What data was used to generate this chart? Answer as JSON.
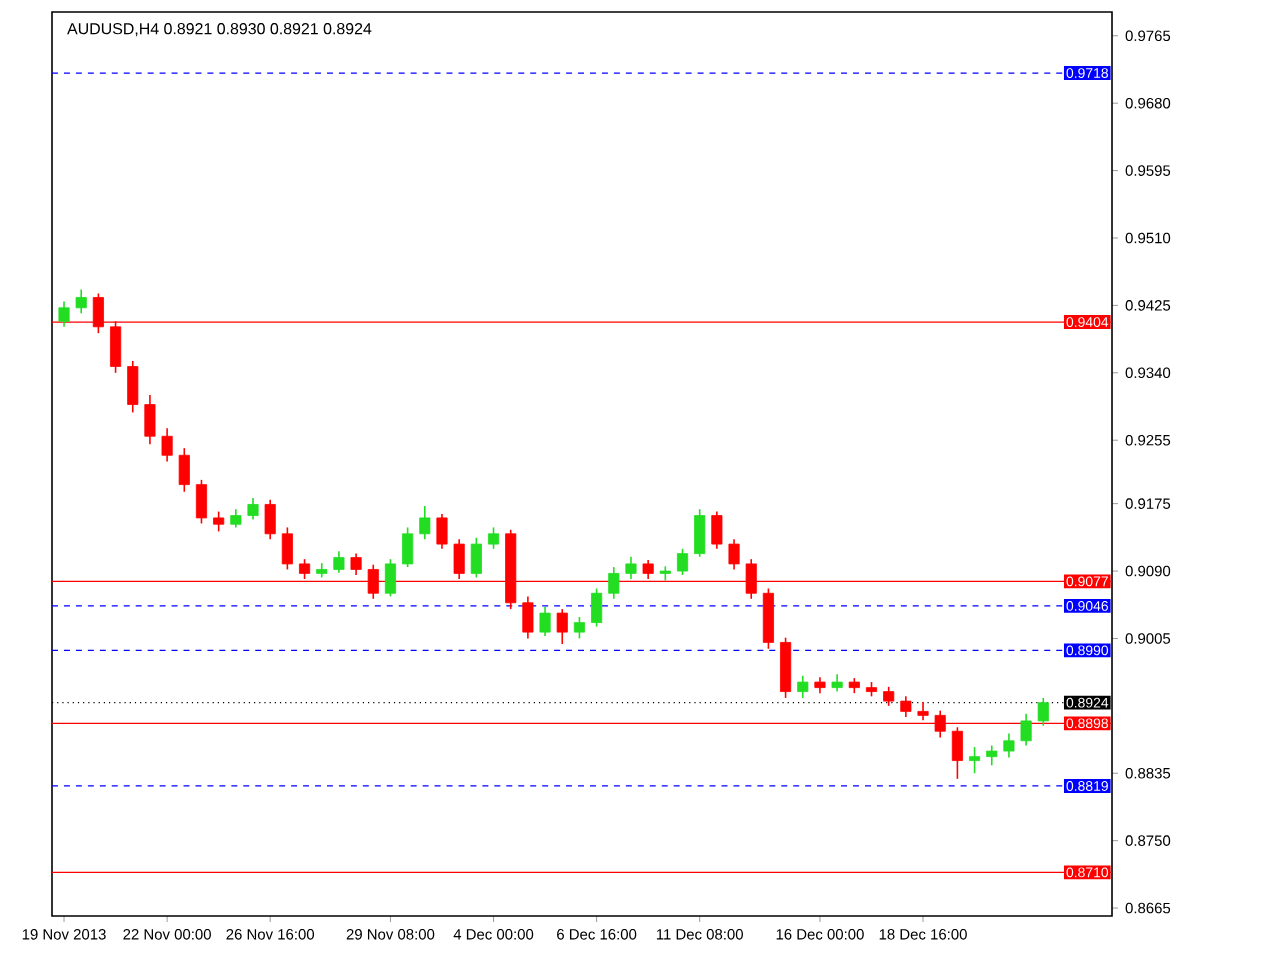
{
  "chart_data": {
    "type": "candlestick",
    "title": "AUDUSD,H4  0.8921 0.8930 0.8921 0.8924",
    "categories": [
      "19 Nov 2013",
      null,
      null,
      null,
      null,
      null,
      "22 Nov 00:00",
      null,
      null,
      null,
      null,
      null,
      "26 Nov 16:00",
      null,
      null,
      null,
      null,
      null,
      null,
      "29 Nov 08:00",
      null,
      null,
      null,
      null,
      null,
      "4 Dec 00:00",
      null,
      null,
      null,
      null,
      null,
      "6 Dec 16:00",
      null,
      null,
      null,
      null,
      null,
      "11 Dec 08:00",
      null,
      null,
      null,
      null,
      null,
      null,
      "16 Dec 00:00",
      null,
      null,
      null,
      null,
      null,
      "18 Dec 16:00",
      null,
      null,
      null,
      null,
      null,
      null,
      null
    ],
    "ohlc": [
      [
        0.9405,
        0.943,
        0.9398,
        0.9422
      ],
      [
        0.9422,
        0.9445,
        0.9415,
        0.9435
      ],
      [
        0.9435,
        0.944,
        0.939,
        0.9398
      ],
      [
        0.9398,
        0.9405,
        0.934,
        0.9348
      ],
      [
        0.9348,
        0.9355,
        0.929,
        0.93
      ],
      [
        0.93,
        0.9312,
        0.925,
        0.926
      ],
      [
        0.926,
        0.927,
        0.9228,
        0.9236
      ],
      [
        0.9236,
        0.9245,
        0.919,
        0.9199
      ],
      [
        0.9199,
        0.9205,
        0.915,
        0.9157
      ],
      [
        0.9157,
        0.9165,
        0.914,
        0.9149
      ],
      [
        0.9149,
        0.9168,
        0.9145,
        0.916
      ],
      [
        0.916,
        0.9182,
        0.9155,
        0.9174
      ],
      [
        0.9174,
        0.918,
        0.913,
        0.9137
      ],
      [
        0.9137,
        0.9145,
        0.9092,
        0.9099
      ],
      [
        0.9099,
        0.9105,
        0.908,
        0.9087
      ],
      [
        0.9087,
        0.91,
        0.9082,
        0.9092
      ],
      [
        0.9092,
        0.9115,
        0.9088,
        0.9107
      ],
      [
        0.9107,
        0.9112,
        0.9085,
        0.9092
      ],
      [
        0.9092,
        0.9098,
        0.9055,
        0.9062
      ],
      [
        0.9062,
        0.9105,
        0.9058,
        0.9099
      ],
      [
        0.9099,
        0.9145,
        0.9095,
        0.9137
      ],
      [
        0.9137,
        0.9172,
        0.913,
        0.9157
      ],
      [
        0.9157,
        0.9162,
        0.9118,
        0.9124
      ],
      [
        0.9124,
        0.913,
        0.908,
        0.9087
      ],
      [
        0.9087,
        0.9132,
        0.9082,
        0.9124
      ],
      [
        0.9124,
        0.9145,
        0.9118,
        0.9137
      ],
      [
        0.9137,
        0.9142,
        0.9042,
        0.905
      ],
      [
        0.905,
        0.9058,
        0.9005,
        0.9013
      ],
      [
        0.9013,
        0.9045,
        0.9008,
        0.9037
      ],
      [
        0.9037,
        0.9042,
        0.8998,
        0.9013
      ],
      [
        0.9013,
        0.9032,
        0.9005,
        0.9025
      ],
      [
        0.9025,
        0.9068,
        0.902,
        0.9062
      ],
      [
        0.9062,
        0.9095,
        0.9055,
        0.9087
      ],
      [
        0.9087,
        0.9108,
        0.908,
        0.9099
      ],
      [
        0.9099,
        0.9104,
        0.908,
        0.9087
      ],
      [
        0.9087,
        0.9096,
        0.9078,
        0.909
      ],
      [
        0.909,
        0.9118,
        0.9085,
        0.9112
      ],
      [
        0.9112,
        0.9168,
        0.9108,
        0.916
      ],
      [
        0.916,
        0.9165,
        0.9118,
        0.9124
      ],
      [
        0.9124,
        0.913,
        0.9092,
        0.9099
      ],
      [
        0.9099,
        0.9105,
        0.9055,
        0.9062
      ],
      [
        0.9062,
        0.9068,
        0.8992,
        0.9
      ],
      [
        0.9,
        0.9006,
        0.893,
        0.8938
      ],
      [
        0.8938,
        0.8958,
        0.893,
        0.895
      ],
      [
        0.895,
        0.8956,
        0.8936,
        0.8943
      ],
      [
        0.8943,
        0.896,
        0.8938,
        0.895
      ],
      [
        0.895,
        0.8955,
        0.8936,
        0.8943
      ],
      [
        0.8943,
        0.895,
        0.8932,
        0.8938
      ],
      [
        0.8938,
        0.8944,
        0.892,
        0.8926
      ],
      [
        0.8926,
        0.8932,
        0.8906,
        0.8913
      ],
      [
        0.8913,
        0.8925,
        0.8902,
        0.8908
      ],
      [
        0.8908,
        0.8914,
        0.888,
        0.8888
      ],
      [
        0.8888,
        0.8893,
        0.8828,
        0.8851
      ],
      [
        0.8851,
        0.8868,
        0.8835,
        0.8856
      ],
      [
        0.8856,
        0.887,
        0.8845,
        0.8863
      ],
      [
        0.8863,
        0.8885,
        0.8855,
        0.8876
      ],
      [
        0.8876,
        0.891,
        0.887,
        0.8901
      ],
      [
        0.8901,
        0.893,
        0.8895,
        0.8924
      ]
    ],
    "colors": [
      "#22dd22",
      "#22dd22",
      "#ff0000",
      "#ff0000",
      "#ff0000",
      "#ff0000",
      "#ff0000",
      "#ff0000",
      "#ff0000",
      "#ff0000",
      "#22dd22",
      "#22dd22",
      "#ff0000",
      "#ff0000",
      "#ff0000",
      "#22dd22",
      "#22dd22",
      "#ff0000",
      "#ff0000",
      "#22dd22",
      "#22dd22",
      "#22dd22",
      "#ff0000",
      "#ff0000",
      "#22dd22",
      "#22dd22",
      "#ff0000",
      "#ff0000",
      "#22dd22",
      "#ff0000",
      "#22dd22",
      "#22dd22",
      "#22dd22",
      "#22dd22",
      "#ff0000",
      "#22dd22",
      "#22dd22",
      "#22dd22",
      "#ff0000",
      "#ff0000",
      "#ff0000",
      "#ff0000",
      "#ff0000",
      "#22dd22",
      "#ff0000",
      "#22dd22",
      "#ff0000",
      "#ff0000",
      "#ff0000",
      "#ff0000",
      "#ff0000",
      "#ff0000",
      "#ff0000",
      "#22dd22",
      "#22dd22",
      "#22dd22",
      "#22dd22",
      "#22dd22"
    ],
    "ylim": [
      0.8655,
      0.9795
    ],
    "yticks": [
      {
        "value": 0.8665,
        "label": "0.8665"
      },
      {
        "value": 0.875,
        "label": "0.8750"
      },
      {
        "value": 0.8835,
        "label": "0.8835"
      },
      {
        "value": 0.9005,
        "label": "0.9005"
      },
      {
        "value": 0.909,
        "label": "0.9090"
      },
      {
        "value": 0.9175,
        "label": "0.9175"
      },
      {
        "value": 0.9255,
        "label": "0.9255"
      },
      {
        "value": 0.934,
        "label": "0.9340"
      },
      {
        "value": 0.9425,
        "label": "0.9425"
      },
      {
        "value": 0.951,
        "label": "0.9510"
      },
      {
        "value": 0.9595,
        "label": "0.9595"
      },
      {
        "value": 0.968,
        "label": "0.9680"
      },
      {
        "value": 0.9765,
        "label": "0.9765"
      }
    ],
    "ref_lines": [
      {
        "axis": "y",
        "value": 0.9718,
        "label": "0.9718",
        "color": "#0000ff",
        "line_style": "dashed"
      },
      {
        "axis": "y",
        "value": 0.9404,
        "label": "0.9404",
        "color": "#ff0000",
        "line_style": "solid"
      },
      {
        "axis": "y",
        "value": 0.9077,
        "label": "0.9077",
        "color": "#ff0000",
        "line_style": "solid"
      },
      {
        "axis": "y",
        "value": 0.9046,
        "label": "0.9046",
        "color": "#0000ff",
        "line_style": "dashed"
      },
      {
        "axis": "y",
        "value": 0.899,
        "label": "0.8990",
        "color": "#0000ff",
        "line_style": "dashed"
      },
      {
        "axis": "y",
        "value": 0.8924,
        "label": "0.8924",
        "color": "#000000",
        "line_style": "dotted"
      },
      {
        "axis": "y",
        "value": 0.8898,
        "label": "0.8898",
        "color": "#ff0000",
        "line_style": "solid"
      },
      {
        "axis": "y",
        "value": 0.8819,
        "label": "0.8819",
        "color": "#0000ff",
        "line_style": "dashed"
      },
      {
        "axis": "y",
        "value": 0.871,
        "label": "0.8710",
        "color": "#ff0000",
        "line_style": "solid"
      }
    ]
  }
}
